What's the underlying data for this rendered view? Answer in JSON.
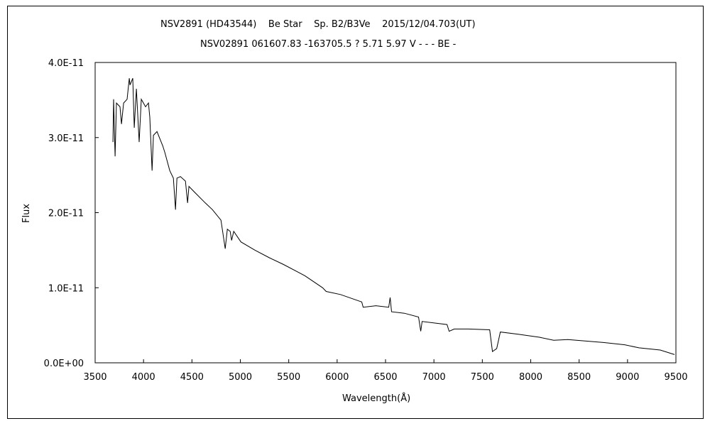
{
  "chart_data": {
    "type": "line",
    "title": "NSV2891 (HD43544)    Be Star    Sp. B2/B3Ve    2015/12/04.703(UT)",
    "subtitle": "NSV02891 061607.83 -163705.5 ? 5.71 5.97 V - - - BE -",
    "xlabel": "Wavelength(Å)",
    "ylabel": "Flux",
    "xlim": [
      3500,
      9500
    ],
    "ylim": [
      0,
      4e-11
    ],
    "x_ticks": [
      3500,
      4000,
      4500,
      5000,
      5500,
      6000,
      6500,
      7000,
      7500,
      8000,
      8500,
      9000,
      9500
    ],
    "x_tick_labels": [
      "3500",
      "4000",
      "4500",
      "5000",
      "5500",
      "6000",
      "6500",
      "7000",
      "7500",
      "8000",
      "8500",
      "9000",
      "9500"
    ],
    "y_ticks": [
      0,
      1e-11,
      2e-11,
      3e-11,
      4e-11
    ],
    "y_tick_labels": [
      "0.0E+00",
      "1.0E-11",
      "2.0E-11",
      "3.0E-11",
      "4.0E-11"
    ],
    "grid": false,
    "series": [
      {
        "name": "Flux",
        "color": "#000000",
        "flux_unit_scale": 1e-11,
        "x": [
          3684,
          3691,
          3706,
          3720,
          3757,
          3772,
          3794,
          3830,
          3853,
          3860,
          3889,
          3904,
          3926,
          3955,
          3977,
          4021,
          4051,
          4065,
          4088,
          4102,
          4139,
          4198,
          4220,
          4271,
          4308,
          4330,
          4345,
          4381,
          4433,
          4455,
          4469,
          4528,
          4638,
          4712,
          4800,
          4844,
          4866,
          4895,
          4910,
          4932,
          5006,
          5152,
          5299,
          5446,
          5666,
          5850,
          5887,
          6034,
          6254,
          6269,
          6401,
          6533,
          6548,
          6562,
          6695,
          6841,
          6864,
          6878,
          7135,
          7157,
          7209,
          7356,
          7576,
          7605,
          7649,
          7686,
          7870,
          8090,
          8237,
          8384,
          8751,
          8971,
          9118,
          9338,
          9485
        ],
        "y": [
          2.94,
          3.51,
          2.75,
          3.46,
          3.41,
          3.18,
          3.46,
          3.51,
          3.79,
          3.7,
          3.79,
          3.13,
          3.65,
          2.94,
          3.51,
          3.41,
          3.46,
          3.27,
          2.56,
          3.03,
          3.08,
          2.89,
          2.8,
          2.56,
          2.46,
          2.04,
          2.46,
          2.48,
          2.42,
          2.13,
          2.35,
          2.27,
          2.13,
          2.04,
          1.9,
          1.52,
          1.78,
          1.75,
          1.63,
          1.75,
          1.61,
          1.5,
          1.4,
          1.31,
          1.16,
          1.0,
          0.95,
          0.91,
          0.81,
          0.74,
          0.76,
          0.74,
          0.87,
          0.68,
          0.66,
          0.61,
          0.42,
          0.55,
          0.51,
          0.42,
          0.45,
          0.45,
          0.44,
          0.15,
          0.19,
          0.41,
          0.38,
          0.34,
          0.3,
          0.31,
          0.27,
          0.24,
          0.2,
          0.17,
          0.11
        ]
      }
    ]
  }
}
